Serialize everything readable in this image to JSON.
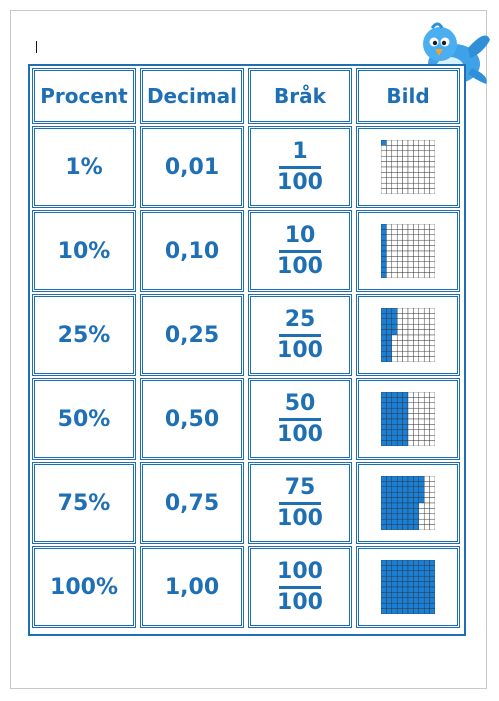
{
  "headers": [
    "Procent",
    "Decimal",
    "Bråk",
    "Bild"
  ],
  "rows": [
    {
      "percent": "1%",
      "decimal": "0,01",
      "numerator": "1",
      "denominator": "100",
      "shaded": 1
    },
    {
      "percent": "10%",
      "decimal": "0,10",
      "numerator": "10",
      "denominator": "100",
      "shaded": 10
    },
    {
      "percent": "25%",
      "decimal": "0,25",
      "numerator": "25",
      "denominator": "100",
      "shaded": 25
    },
    {
      "percent": "50%",
      "decimal": "0,50",
      "numerator": "50",
      "denominator": "100",
      "shaded": 50
    },
    {
      "percent": "75%",
      "decimal": "0,75",
      "numerator": "75",
      "denominator": "100",
      "shaded": 75
    },
    {
      "percent": "100%",
      "decimal": "1,00",
      "numerator": "100",
      "denominator": "100",
      "shaded": 100
    }
  ],
  "colors": {
    "accent": "#1f6fb5",
    "fill": "#1a7fd6"
  },
  "decoration": {
    "icon": "bluebird-icon"
  }
}
